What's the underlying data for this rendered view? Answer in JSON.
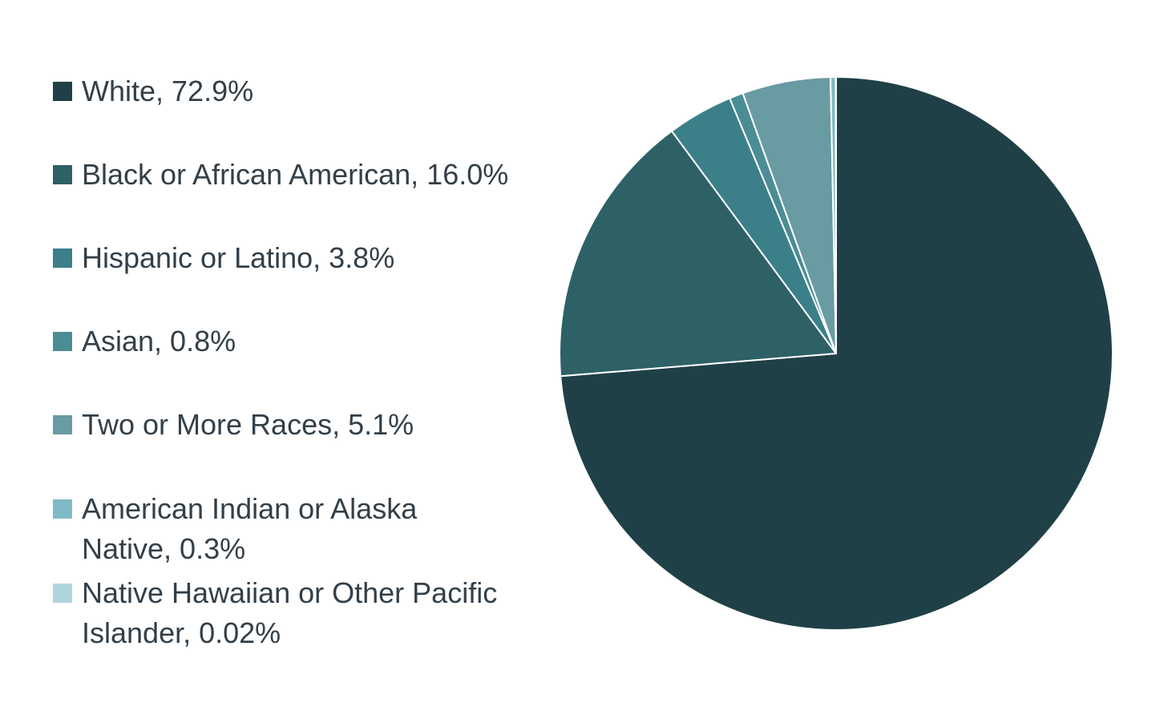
{
  "chart_data": {
    "type": "pie",
    "title": "",
    "legend_position": "left",
    "slices": [
      {
        "label": "White, 72.9%",
        "value": 72.9,
        "color": "#1f4046"
      },
      {
        "label": "Black or African American, 16.0%",
        "value": 16.0,
        "color": "#2d6166"
      },
      {
        "label": "Hispanic or Latino, 3.8%",
        "value": 3.8,
        "color": "#3b7f89"
      },
      {
        "label": "Asian, 0.8%",
        "value": 0.8,
        "color": "#4b8d94"
      },
      {
        "label": "Two or More Races, 5.1%",
        "value": 5.1,
        "color": "#699ba3"
      },
      {
        "label": "American Indian or Alaska Native, 0.3%",
        "value": 0.3,
        "color": "#7fbac5"
      },
      {
        "label": "Native Hawaiian or Other Pacific Islander, 0.02%",
        "value": 0.02,
        "color": "#aed5da"
      }
    ]
  }
}
